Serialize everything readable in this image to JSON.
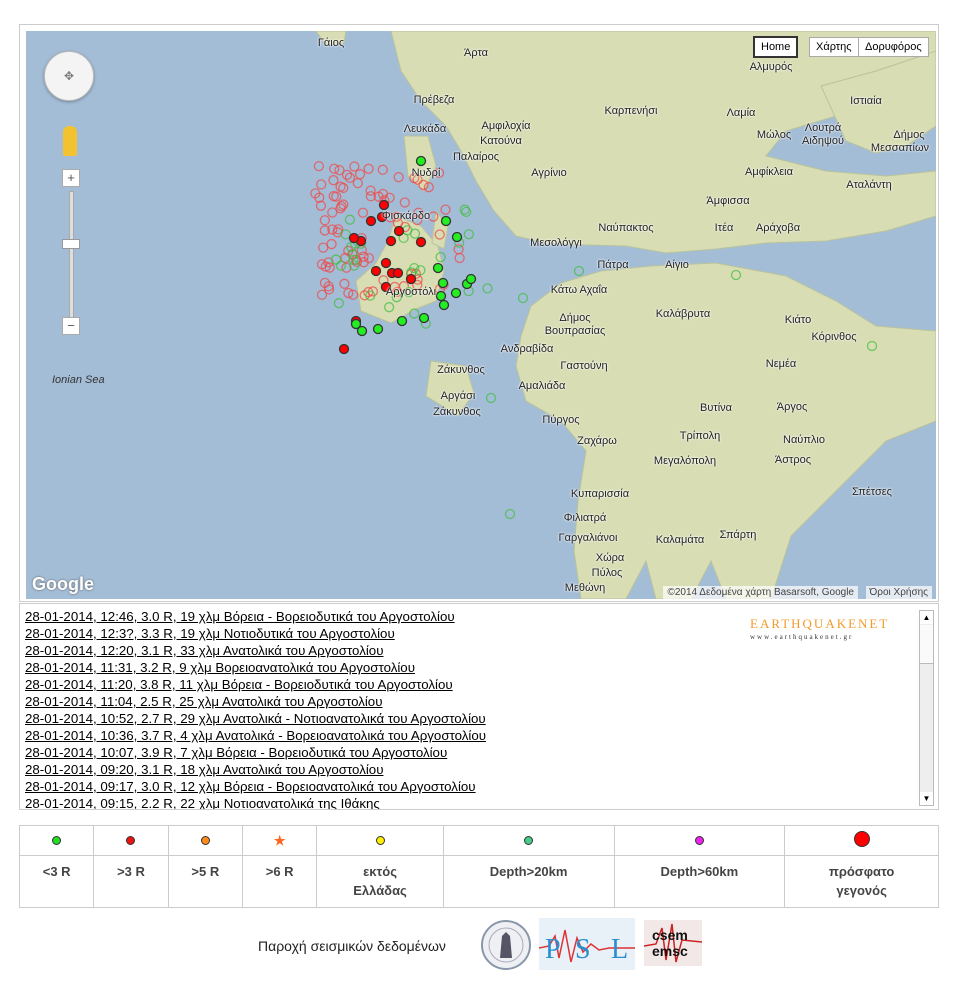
{
  "map": {
    "type_buttons": {
      "home": "Home",
      "map": "Χάρτης",
      "satellite": "Δορυφόρος"
    },
    "zoom_in": "+",
    "zoom_out": "−",
    "google_logo": "Google",
    "copyright": "©2014 Δεδομένα χάρτη Basarsoft, Google",
    "terms": "Όροι Χρήσης",
    "sea_label": "Ionian Sea",
    "labels": [
      "Γάιος",
      "Άρτα",
      "Αλμυρός",
      "Πρέβεζα",
      "Καρπενήσι",
      "Λαμία",
      "Ιστιαία",
      "Λευκάδα",
      "Αμφιλοχία",
      "Κατούνα",
      "Μώλος",
      "Λουτρά",
      "Αιδηψού",
      "Δήμος",
      "Μεσσαπίων",
      "Παλαίρος",
      "Νυδρί",
      "Αγρίνιο",
      "Αμφίκλεια",
      "Αταλάντη",
      "Άμφισσα",
      "Φισκάρδο",
      "Ναύπακτος",
      "Ιτέα",
      "Αράχοβα",
      "Μεσολόγγι",
      "Πάτρα",
      "Αίγιο",
      "Αργοστόλι",
      "Κάτω Αχαΐα",
      "Δήμος",
      "Βουπρασίας",
      "Καλάβρυτα",
      "Κιάτο",
      "Κόρινθος",
      "Ανδραβίδα",
      "Ζάκυνθος",
      "Γαστούνη",
      "Νεμέα",
      "Αμαλιάδα",
      "Αργάσι",
      "Ζάκυνθος",
      "Πύργος",
      "Βυτίνα",
      "Άργος",
      "Τρίπολη",
      "Ζαχάρω",
      "Ναύπλιο",
      "Μεγαλόπολη",
      "Άστρος",
      "Σπέτσες",
      "Κυπαρισσία",
      "Φιλιατρά",
      "Σπάρτη",
      "Καλαμάτα",
      "Γαργαλιάνοι",
      "Χώρα",
      "Πύλος",
      "Μεθώνη"
    ],
    "colors": {
      "sea": "#a4bdd6",
      "land": "#d8ddb4",
      "recent": "#ff0000",
      "small": "#00dd00"
    }
  },
  "events_list": {
    "logo_text": "EARTHQUAKENET",
    "logo_url_text": "www.earthquakenet.gr",
    "items": [
      "28-01-2014, 12:46, 3.0 R, 19 χλμ Βόρεια - Βορειοδυτικά του Αργοστολίου",
      "28-01-2014, 12:3?, 3.3 R, 19 χλμ Νοτιοδυτικά του Αργοστολίου",
      "28-01-2014, 12:20, 3.1 R, 33 χλμ Ανατολικά του Αργοστολίου",
      "28-01-2014, 11:31, 3.2 R, 9 χλμ Βορειοανατολικά του Αργοστολίου",
      "28-01-2014, 11:20, 3.8 R, 11 χλμ Βόρεια - Βορειοδυτικά του Αργοστολίου",
      "28-01-2014, 11:04, 2.5 R, 25 χλμ Ανατολικά του Αργοστολίου",
      "28-01-2014, 10:52, 2.7 R, 29 χλμ Ανατολικά - Νοτιοανατολικά του Αργοστολίου",
      "28-01-2014, 10:36, 3.7 R, 4 χλμ Ανατολικά - Βορειοανατολικά του Αργοστολίου",
      "28-01-2014, 10:07, 3.9 R, 7 χλμ Βόρεια - Βορειοδυτικά του Αργοστολίου",
      "28-01-2014, 09:20, 3.1 R, 18 χλμ Ανατολικά του Αργοστολίου",
      "28-01-2014, 09:17, 3.0 R, 12 χλμ Βόρεια - Βορειοανατολικά του Αργοστολίου",
      "28-01-2014, 09:15, 2.2 R, 22 χλμ Νοτιοανατολικά της Ιθάκης"
    ]
  },
  "legend": [
    {
      "label": "<3 R",
      "color": "#22dd22",
      "shape": "dot"
    },
    {
      "label": ">3 R",
      "color": "#ee1111",
      "shape": "dot"
    },
    {
      "label": ">5 R",
      "color": "#ff8c1a",
      "shape": "dot"
    },
    {
      "label": ">6 R",
      "color": "#ff6622",
      "shape": "star"
    },
    {
      "label": "εκτός Ελλάδας",
      "color": "#ffee00",
      "shape": "dot"
    },
    {
      "label": "Depth>20km",
      "color": "#44cc88",
      "shape": "dot"
    },
    {
      "label": "Depth>60km",
      "color": "#ee22ee",
      "shape": "dot"
    },
    {
      "label": "πρόσφατο γεγονός",
      "color": "#ff0000",
      "shape": "big-dot"
    }
  ],
  "providers": {
    "label": "Παροχή σεισμικών δεδομένων",
    "logos": [
      "University of Athens seal",
      "PSL",
      "csem emsc"
    ]
  }
}
